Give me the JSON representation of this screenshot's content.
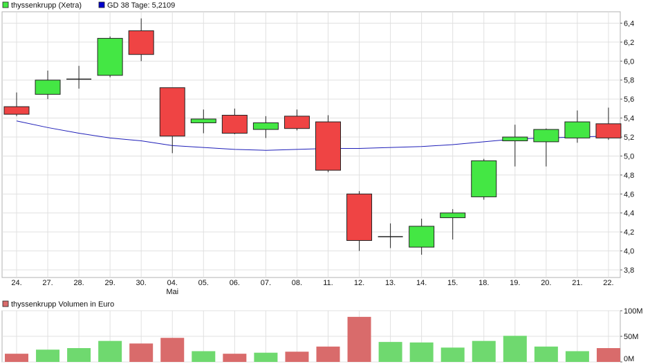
{
  "colors": {
    "up": "#44e744",
    "down": "#ef4444",
    "ma_line": "#1d1db8",
    "grid": "#e0e0e0",
    "vol_up": "#6fd96f",
    "vol_down": "#d96b6b",
    "legend_ma": "#0000cc",
    "legend_stock": "#44e744",
    "legend_volume": "#d96b6b"
  },
  "legend": {
    "stock_label": "thyssenkrupp (Xetra)",
    "ma_label": "GD 38 Tage: 5,2109",
    "volume_label": "thyssenkrupp Volumen in Euro"
  },
  "chart_data": [
    {
      "type": "candlestick",
      "x": [
        "24.",
        "27.",
        "28.",
        "29.",
        "30.",
        "04.",
        "05.",
        "06.",
        "07.",
        "08.",
        "11.",
        "12.",
        "13.",
        "14.",
        "15.",
        "18.",
        "19.",
        "20.",
        "21.",
        "22."
      ],
      "month_labels": [
        {
          "index": 5,
          "label": "Mai"
        }
      ],
      "y_ticks": [
        "6,4",
        "6,2",
        "6,0",
        "5,8",
        "5,6",
        "5,4",
        "5,2",
        "5,0",
        "4,8",
        "4,6",
        "4,4",
        "4,2",
        "4,0",
        "3,8"
      ],
      "y_tick_values": [
        6.4,
        6.2,
        6.0,
        5.8,
        5.6,
        5.4,
        5.2,
        5.0,
        4.8,
        4.6,
        4.4,
        4.2,
        4.0,
        3.8
      ],
      "ylim": [
        3.72,
        6.52
      ],
      "grid": true,
      "ohlc": [
        {
          "o": 5.52,
          "h": 5.67,
          "l": 5.42,
          "c": 5.44
        },
        {
          "o": 5.65,
          "h": 5.9,
          "l": 5.6,
          "c": 5.8
        },
        {
          "o": 5.81,
          "h": 5.95,
          "l": 5.71,
          "c": 5.81
        },
        {
          "o": 5.85,
          "h": 6.26,
          "l": 5.83,
          "c": 6.24
        },
        {
          "o": 6.32,
          "h": 6.45,
          "l": 6.0,
          "c": 6.07
        },
        {
          "o": 5.72,
          "h": 5.72,
          "l": 5.03,
          "c": 5.21
        },
        {
          "o": 5.35,
          "h": 5.49,
          "l": 5.24,
          "c": 5.39
        },
        {
          "o": 5.43,
          "h": 5.5,
          "l": 5.23,
          "c": 5.24
        },
        {
          "o": 5.28,
          "h": 5.42,
          "l": 5.19,
          "c": 5.35
        },
        {
          "o": 5.42,
          "h": 5.49,
          "l": 5.27,
          "c": 5.29
        },
        {
          "o": 5.36,
          "h": 5.43,
          "l": 4.83,
          "c": 4.85
        },
        {
          "o": 4.6,
          "h": 4.63,
          "l": 4.0,
          "c": 4.11
        },
        {
          "o": 4.15,
          "h": 4.29,
          "l": 4.03,
          "c": 4.15
        },
        {
          "o": 4.04,
          "h": 4.34,
          "l": 3.96,
          "c": 4.26
        },
        {
          "o": 4.35,
          "h": 4.44,
          "l": 4.12,
          "c": 4.4
        },
        {
          "o": 4.57,
          "h": 4.97,
          "l": 4.54,
          "c": 4.95
        },
        {
          "o": 5.16,
          "h": 5.33,
          "l": 4.89,
          "c": 5.2
        },
        {
          "o": 5.15,
          "h": 5.29,
          "l": 4.89,
          "c": 5.28
        },
        {
          "o": 5.19,
          "h": 5.48,
          "l": 5.14,
          "c": 5.36
        },
        {
          "o": 5.34,
          "h": 5.51,
          "l": 5.17,
          "c": 5.19
        }
      ],
      "series": [
        {
          "name": "GD 38 Tage: 5,2109",
          "type": "line",
          "values": [
            5.37,
            5.3,
            5.24,
            5.19,
            5.16,
            5.11,
            5.09,
            5.07,
            5.06,
            5.07,
            5.08,
            5.08,
            5.09,
            5.1,
            5.12,
            5.15,
            5.18,
            5.19,
            5.2,
            5.21
          ]
        }
      ]
    },
    {
      "type": "bar",
      "title": "thyssenkrupp Volumen in Euro",
      "categories": [
        "24.",
        "27.",
        "28.",
        "29.",
        "30.",
        "04.",
        "05.",
        "06.",
        "07.",
        "08.",
        "11.",
        "12.",
        "13.",
        "14.",
        "15.",
        "18.",
        "19.",
        "20.",
        "21.",
        "22."
      ],
      "y_ticks": [
        "100M",
        "50M",
        "0M"
      ],
      "y_tick_values": [
        100,
        50,
        0
      ],
      "ylim": [
        0,
        100
      ],
      "values": [
        16,
        24,
        27,
        41,
        36,
        47,
        21,
        16,
        18,
        20,
        30,
        88,
        39,
        38,
        28,
        41,
        51,
        30,
        21,
        27
      ],
      "direction": [
        "down",
        "up",
        "up",
        "up",
        "down",
        "down",
        "up",
        "down",
        "up",
        "down",
        "down",
        "down",
        "up",
        "up",
        "up",
        "up",
        "up",
        "up",
        "up",
        "down"
      ]
    }
  ]
}
